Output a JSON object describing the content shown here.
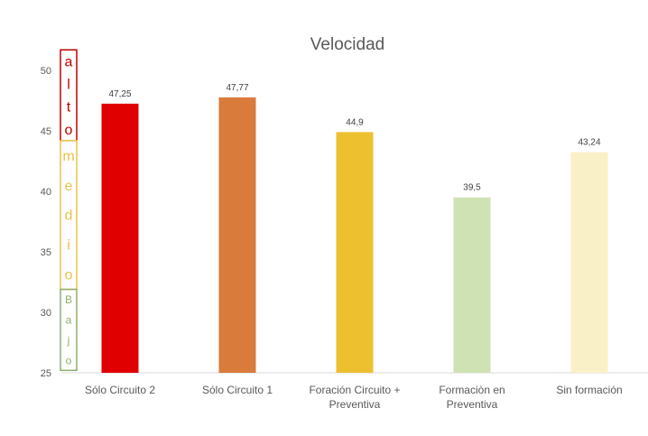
{
  "chart_data": {
    "type": "bar",
    "title": "Velocidad",
    "categories": [
      "Sólo Circuito 2",
      "Sólo Circuito 1",
      "Foración Circuito + Preventiva",
      "Formaciòn en Preventiva",
      "Sin formación"
    ],
    "category_lines": [
      [
        "Sólo Circuito 2"
      ],
      [
        "Sólo Circuito 1"
      ],
      [
        "Foración Circuito +",
        "Preventiva"
      ],
      [
        "Formaciòn en",
        "Preventiva"
      ],
      [
        "Sin formación"
      ]
    ],
    "values": [
      47.25,
      47.77,
      44.9,
      39.5,
      43.24
    ],
    "data_labels": [
      "47,25",
      "47,77",
      "44,9",
      "39,5",
      "43,24"
    ],
    "bar_colors": [
      "#E00000",
      "#D97B3A",
      "#EDC030",
      "#CFE2B4",
      "#FAF0C8"
    ],
    "ylim": [
      25,
      50
    ],
    "yticks": [
      25,
      30,
      35,
      40,
      45,
      50
    ],
    "grid": false,
    "legend": "none",
    "bands": [
      {
        "letters": [
          "a",
          "l",
          "t",
          "o"
        ],
        "color": "#C00000",
        "range": [
          44.2,
          51.7
        ]
      },
      {
        "letters": [
          "m",
          "e",
          "d",
          "i",
          "o"
        ],
        "color": "#E8C24A",
        "range": [
          31.9,
          44.2
        ]
      },
      {
        "letters": [
          "B",
          "a",
          "j",
          "o"
        ],
        "color": "#8FAE6B",
        "range": [
          25.2,
          31.9
        ]
      }
    ]
  }
}
